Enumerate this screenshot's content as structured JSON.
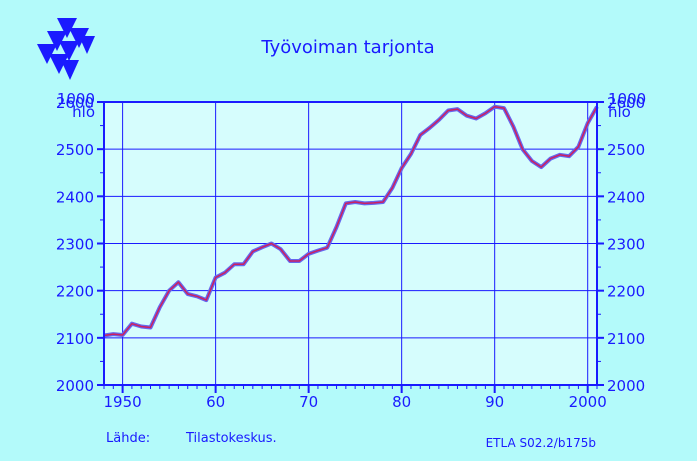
{
  "chart_data": {
    "type": "line",
    "title": "Työvoiman tarjonta",
    "unit_label_line1": "1000",
    "unit_label_line2": "hlö",
    "ylim": [
      2000,
      2600
    ],
    "xlim": [
      1948,
      2001
    ],
    "y_ticks": [
      2000,
      2100,
      2200,
      2300,
      2400,
      2500,
      2600
    ],
    "x_ticks": [
      1950,
      1960,
      1970,
      1980,
      1990,
      2000
    ],
    "x_tick_labels": [
      "1950",
      "60",
      "70",
      "80",
      "90",
      "2000"
    ],
    "grid": true,
    "series": [
      {
        "name": "",
        "color": "#cc2060",
        "x": [
          1948,
          1949,
          1950,
          1951,
          1952,
          1953,
          1954,
          1955,
          1956,
          1957,
          1958,
          1959,
          1960,
          1961,
          1962,
          1963,
          1964,
          1965,
          1966,
          1967,
          1968,
          1969,
          1970,
          1971,
          1972,
          1973,
          1974,
          1975,
          1976,
          1977,
          1978,
          1979,
          1980,
          1981,
          1982,
          1983,
          1984,
          1985,
          1986,
          1987,
          1988,
          1989,
          1990,
          1991,
          1992,
          1993,
          1994,
          1995,
          1996,
          1997,
          1998,
          1999,
          2000,
          2001
        ],
        "values": [
          2105,
          2108,
          2106,
          2130,
          2124,
          2122,
          2165,
          2200,
          2218,
          2193,
          2188,
          2180,
          2228,
          2238,
          2256,
          2256,
          2283,
          2292,
          2300,
          2288,
          2263,
          2263,
          2278,
          2285,
          2291,
          2335,
          2385,
          2388,
          2385,
          2386,
          2388,
          2418,
          2460,
          2490,
          2530,
          2545,
          2562,
          2582,
          2585,
          2571,
          2565,
          2576,
          2590,
          2587,
          2548,
          2500,
          2475,
          2462,
          2480,
          2488,
          2485,
          2505,
          2555,
          2590
        ]
      }
    ]
  },
  "source": {
    "label": "Lähde:",
    "value": "Tilastokeskus."
  },
  "footer_code": "ETLA S02.2/b175b",
  "colors": {
    "background": "#b3fafa",
    "plot_area": "#d6fdfd",
    "axis_and_text": "#1a1aff",
    "line_shadow": "#6666ee"
  },
  "logo": {
    "name": "ETLA triangles logo"
  }
}
